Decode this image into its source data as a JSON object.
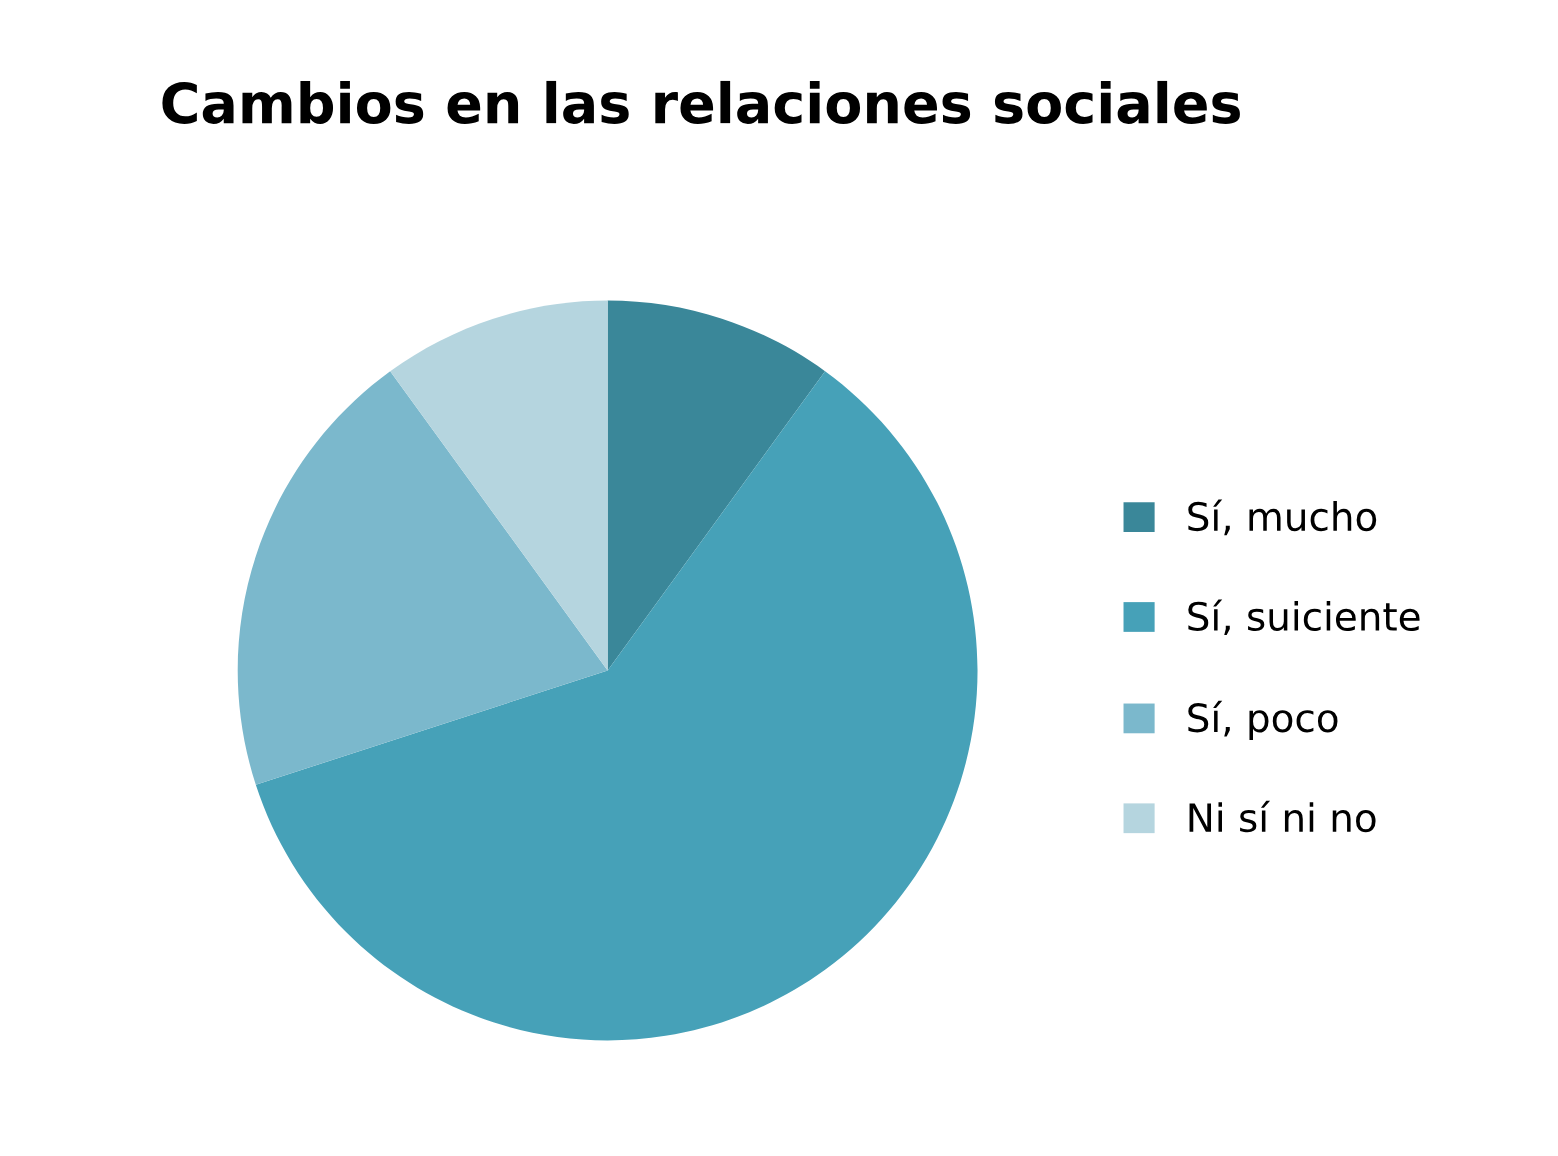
{
  "chart_data": {
    "type": "pie",
    "title": "Cambios en las relaciones sociales",
    "categories": [
      "Sí, mucho",
      "Sí, suiciente",
      "Sí, poco",
      "Ni sí ni no"
    ],
    "values": [
      10,
      60,
      20,
      10
    ],
    "colors": [
      "#3a8799",
      "#46a1b8",
      "#7bb8cc",
      "#b5d5df"
    ],
    "legend": "right"
  }
}
